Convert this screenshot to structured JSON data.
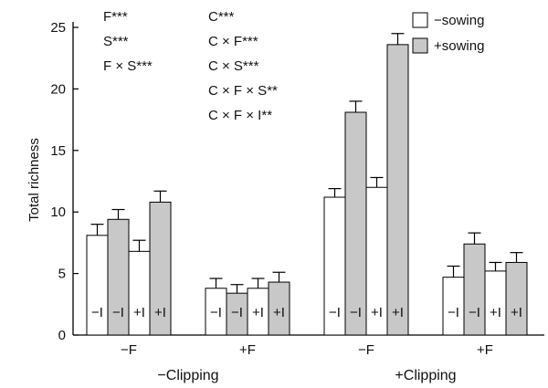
{
  "chart_data": {
    "type": "bar",
    "ylabel": "Total richness",
    "ylim": [
      0,
      25
    ],
    "yticks": [
      0,
      5,
      10,
      15,
      20,
      25
    ],
    "legend": [
      {
        "label": "−sowing",
        "color": "#ffffff"
      },
      {
        "label": "+sowing",
        "color": "#c8c8c8"
      }
    ],
    "legend_position": "top-right",
    "annotations_left": [
      "F***",
      "S***",
      "F × S***"
    ],
    "annotations_right": [
      "C***",
      "C × F***",
      "C × S***",
      "C × F × S**",
      "C × F × I**"
    ],
    "groups": [
      {
        "label": "−F",
        "parent": "−Clipping",
        "bars": [
          {
            "sowing": "−sowing",
            "i_label": "−I",
            "value": 8.1,
            "error": 0.9
          },
          {
            "sowing": "+sowing",
            "i_label": "−I",
            "value": 9.4,
            "error": 0.8
          },
          {
            "sowing": "−sowing",
            "i_label": "+I",
            "value": 6.8,
            "error": 0.9
          },
          {
            "sowing": "+sowing",
            "i_label": "+I",
            "value": 10.8,
            "error": 0.9
          }
        ]
      },
      {
        "label": "+F",
        "parent": "−Clipping",
        "bars": [
          {
            "sowing": "−sowing",
            "i_label": "−I",
            "value": 3.8,
            "error": 0.8
          },
          {
            "sowing": "+sowing",
            "i_label": "−I",
            "value": 3.4,
            "error": 0.7
          },
          {
            "sowing": "−sowing",
            "i_label": "+I",
            "value": 3.8,
            "error": 0.8
          },
          {
            "sowing": "+sowing",
            "i_label": "+I",
            "value": 4.3,
            "error": 0.8
          }
        ]
      },
      {
        "label": "−F",
        "parent": "+Clipping",
        "bars": [
          {
            "sowing": "−sowing",
            "i_label": "−I",
            "value": 11.2,
            "error": 0.7
          },
          {
            "sowing": "+sowing",
            "i_label": "−I",
            "value": 18.1,
            "error": 0.9
          },
          {
            "sowing": "−sowing",
            "i_label": "+I",
            "value": 12.0,
            "error": 0.8
          },
          {
            "sowing": "+sowing",
            "i_label": "+I",
            "value": 23.6,
            "error": 0.9
          }
        ]
      },
      {
        "label": "+F",
        "parent": "+Clipping",
        "bars": [
          {
            "sowing": "−sowing",
            "i_label": "−I",
            "value": 4.7,
            "error": 0.9
          },
          {
            "sowing": "+sowing",
            "i_label": "−I",
            "value": 7.4,
            "error": 0.9
          },
          {
            "sowing": "−sowing",
            "i_label": "+I",
            "value": 5.2,
            "error": 0.7
          },
          {
            "sowing": "+sowing",
            "i_label": "+I",
            "value": 5.9,
            "error": 0.8
          }
        ]
      }
    ],
    "clipping_labels": [
      "−Clipping",
      "+Clipping"
    ]
  }
}
